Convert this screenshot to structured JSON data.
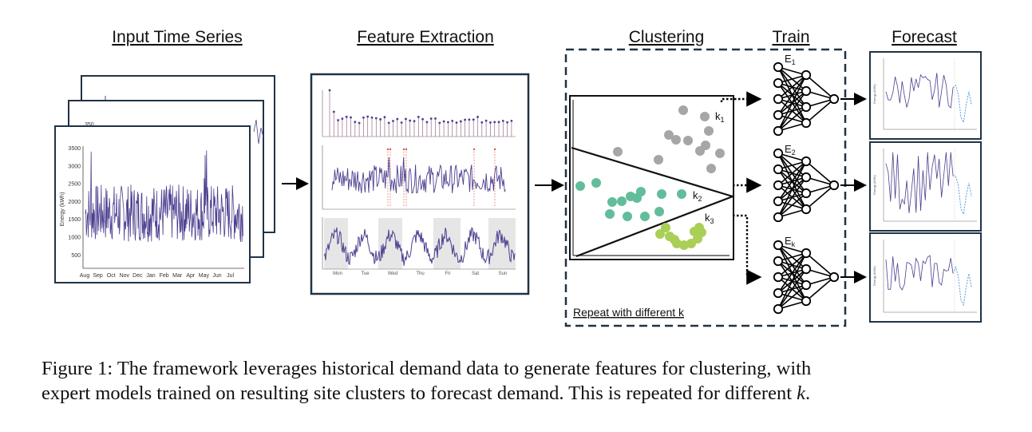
{
  "headings": {
    "input": "Input Time Series",
    "feature": "Feature Extraction",
    "clustering": "Clustering",
    "train": "Train",
    "forecast": "Forecast"
  },
  "input_chart": {
    "ylabel": "Energy (kWh)",
    "yticks": [
      "3500",
      "3000",
      "2500",
      "2000",
      "1500",
      "1000",
      "500"
    ],
    "xticks": [
      "Aug",
      "Sep",
      "Oct",
      "Nov",
      "Dec",
      "Jan",
      "Feb",
      "Mar",
      "Apr",
      "May",
      "Jun",
      "Jul"
    ],
    "back_tick": "350"
  },
  "weekly_days": [
    "Mon",
    "Tue",
    "Wed",
    "Thu",
    "Fri",
    "Sat",
    "Sun"
  ],
  "clusters": {
    "k1": "k",
    "k1_sub": "1",
    "k2": "k",
    "k2_sub": "2",
    "k3": "k",
    "k3_sub": "3",
    "repeat_label": "Repeat with different k"
  },
  "experts": {
    "e1": "E",
    "e1_sub": "1",
    "e2": "E",
    "e2_sub": "2",
    "ek": "E",
    "ek_sub": "k"
  },
  "forecast_axis_label": "Energy (kWh)",
  "colors": {
    "line": "#4b3f8f",
    "cluster_grey": "#a6a6a6",
    "cluster_teal": "#62bd9a",
    "cluster_green": "#a9cf56",
    "forecast_dash": "#5a9bd8",
    "frame": "#1f3346"
  },
  "caption": {
    "line1": "Figure 1: The framework leverages historical demand data to generate features for clustering, with",
    "line2_prefix": "expert models trained on resulting site clusters to forecast demand. This is repeated for different ",
    "line2_var": "k",
    "line2_end": "."
  }
}
